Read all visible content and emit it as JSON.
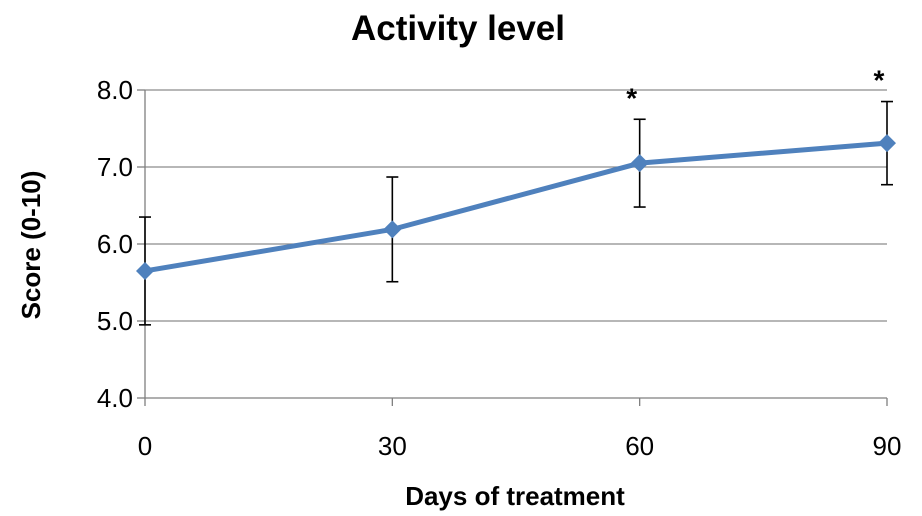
{
  "chart_data": {
    "type": "line",
    "title": "Activity level",
    "xlabel": "Days of treatment",
    "ylabel": "Score (0-10)",
    "x": [
      0,
      30,
      60,
      90
    ],
    "x_tick_labels": [
      "0",
      "30",
      "60",
      "90"
    ],
    "y_tick_labels": [
      "4.0",
      "5.0",
      "6.0",
      "7.0",
      "8.0"
    ],
    "ylim": [
      4.0,
      8.0
    ],
    "xlim": [
      0,
      90
    ],
    "grid": true,
    "legend": "none",
    "series": [
      {
        "values": [
          5.65,
          6.19,
          7.05,
          7.31
        ],
        "error": [
          0.7,
          0.68,
          0.57,
          0.54
        ],
        "color": "#4f81bd",
        "marker": "diamond"
      }
    ],
    "annotations": [
      {
        "x": 60,
        "text": "*"
      },
      {
        "x": 90,
        "text": "*"
      }
    ]
  }
}
